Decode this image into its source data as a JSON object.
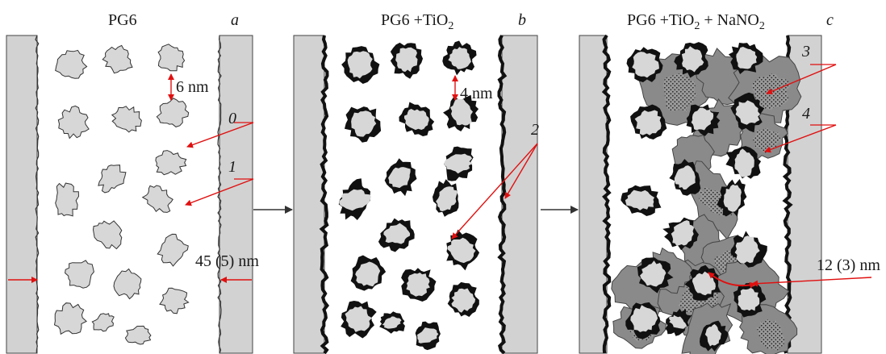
{
  "panels": [
    {
      "id": "a",
      "title_main": "PG6",
      "title_sub": "",
      "title_rest": "",
      "title_sub2": "",
      "letter": "a"
    },
    {
      "id": "b",
      "title_main": "PG6 +TiO",
      "title_sub": "2",
      "title_rest": "",
      "title_sub2": "",
      "letter": "b"
    },
    {
      "id": "c",
      "title_main": "PG6 +TiO",
      "title_sub": "2",
      "title_rest": " + NaNO",
      "title_sub2": "2",
      "letter": "c"
    }
  ],
  "annotations": {
    "gap_a": "6 nm",
    "gap_b": "4 nm",
    "pore_a": "45 (5) nm",
    "pore_c": "12 (3) nm",
    "label_0": "0",
    "label_1": "1",
    "label_2": "2",
    "label_3": "3",
    "label_4": "4"
  },
  "colors": {
    "wall": "#d2d2d2",
    "particle": "#d7d7d7",
    "tio2_coat": "#111111",
    "nitrite": "#8a8a8a",
    "pointer": "#e01010",
    "flow_arrow": "#333333"
  }
}
